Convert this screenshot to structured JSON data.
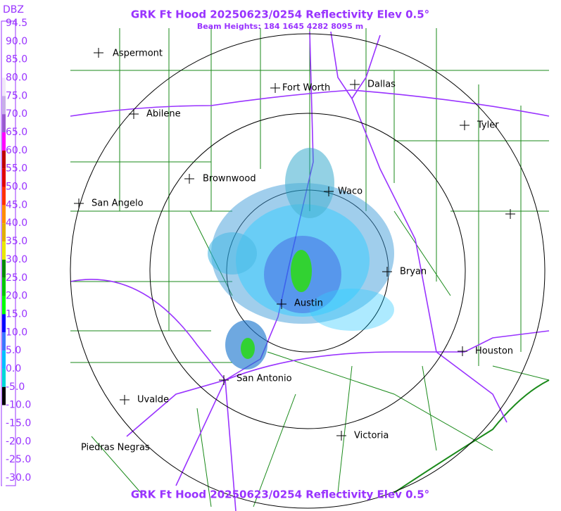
{
  "header": {
    "title": "GRK Ft Hood 20250623/0254 Reflectivity Elev 0.5°",
    "subtitle": "Beam Heights: 184 1645 4282 8095 m"
  },
  "footer": {
    "title": "GRK Ft Hood 20250623/0254 Reflectivity Elev 0.5°"
  },
  "colorbar": {
    "title": "DBZ",
    "labels": [
      "94.5",
      "90.0",
      "85.0",
      "80.0",
      "75.0",
      "70.0",
      "65.0",
      "60.0",
      "55.0",
      "50.0",
      "45.0",
      "40.0",
      "35.0",
      "30.0",
      "25.0",
      "20.0",
      "15.0",
      "10.0",
      "5.0",
      "0.0",
      "-5.0",
      "-10.0",
      "-15.0",
      "-20.0",
      "-25.0",
      "-30.0"
    ],
    "colors": [
      "#ffffff",
      "#ffffff",
      "#ffffff",
      "#f0e8f8",
      "#c8b0e8",
      "#9a5ad0",
      "#ff00ff",
      "#c00000",
      "#e00000",
      "#ff3000",
      "#ff8c00",
      "#e0b000",
      "#e8e800",
      "#008c00",
      "#00c800",
      "#00ff00",
      "#0000ff",
      "#3c78ff",
      "#00c0ff",
      "#00d8d8",
      "#000000",
      "#ffffff",
      "#ffffff",
      "#ffffff",
      "#ffffff",
      "#ffffff"
    ]
  },
  "cities": [
    "Aspermont",
    "Abilene",
    "Fort Worth",
    "Dallas",
    "Tyler",
    "Brownwood",
    "Waco",
    "San Angelo",
    "Bryan",
    "Austin",
    "Houston",
    "San Antonio",
    "Uvalde",
    "Victoria",
    "Piedras Negras"
  ]
}
